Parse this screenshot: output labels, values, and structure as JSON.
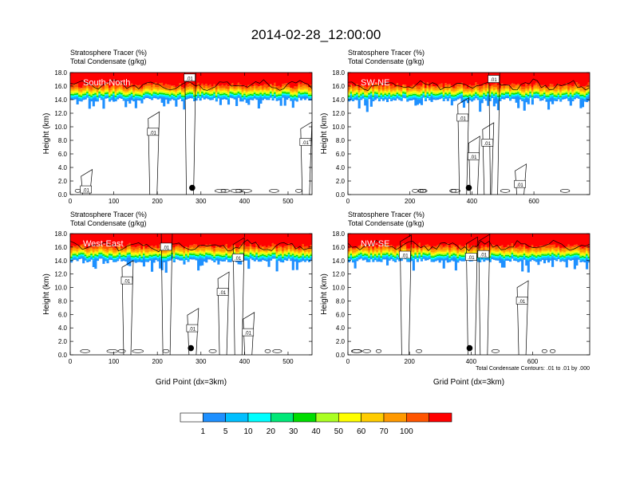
{
  "page_title": "2014-02-28_12:00:00",
  "chart_data": [
    {
      "type": "heatmap",
      "panel_label": "South-North",
      "subtitle_line1": "Stratosphere Tracer   (%)",
      "subtitle_line2": "Total Condensate   (g/kg)",
      "ylabel": "Height (km)",
      "xlabel": "",
      "xlim": [
        0,
        555
      ],
      "ylim": [
        0,
        18
      ],
      "xticks": [
        "0",
        "100",
        "200",
        "300",
        "400",
        "500"
      ],
      "yticks": [
        "0.0",
        "2.0",
        "4.0",
        "6.0",
        "8.0",
        "10.0",
        "12.0",
        "14.0",
        "16.0",
        "18.0"
      ],
      "tracer_base_km": 14.0,
      "contour_labels": [
        {
          "x": 274,
          "y": 17.2,
          "text": ".01"
        },
        {
          "x": 190,
          "y": 9.2,
          "text": ".01"
        },
        {
          "x": 540,
          "y": 7.7,
          "text": ".01"
        },
        {
          "x": 36,
          "y": 0.7,
          "text": ".01"
        }
      ],
      "marker": {
        "x": 280,
        "y": 1.0
      },
      "footnote": ""
    },
    {
      "type": "heatmap",
      "panel_label": "SW-NE",
      "subtitle_line1": "Stratosphere Tracer   (%)",
      "subtitle_line2": "Total Condensate   (g/kg)",
      "ylabel": "Height (km)",
      "xlabel": "",
      "xlim": [
        0,
        780
      ],
      "ylim": [
        0,
        18
      ],
      "xticks": [
        "0",
        "200",
        "400",
        "600"
      ],
      "yticks": [
        "0.0",
        "2.0",
        "4.0",
        "6.0",
        "8.0",
        "10.0",
        "12.0",
        "14.0",
        "16.0",
        "18.0"
      ],
      "tracer_base_km": 14.0,
      "contour_labels": [
        {
          "x": 470,
          "y": 17.0,
          "text": ".01"
        },
        {
          "x": 370,
          "y": 11.3,
          "text": ".01"
        },
        {
          "x": 450,
          "y": 7.6,
          "text": ".01"
        },
        {
          "x": 405,
          "y": 5.6,
          "text": ".01"
        },
        {
          "x": 555,
          "y": 1.5,
          "text": ".01"
        }
      ],
      "marker": {
        "x": 390,
        "y": 1.0
      },
      "footnote": ""
    },
    {
      "type": "heatmap",
      "panel_label": "West-East",
      "subtitle_line1": "Stratosphere Tracer   (%)",
      "subtitle_line2": "Total Condensate   (g/kg)",
      "ylabel": "Height (km)",
      "xlabel": "Grid Point (dx=3km)",
      "xlim": [
        0,
        555
      ],
      "ylim": [
        0,
        18
      ],
      "xticks": [
        "0",
        "100",
        "200",
        "300",
        "400",
        "500"
      ],
      "yticks": [
        "0.0",
        "2.0",
        "4.0",
        "6.0",
        "8.0",
        "10.0",
        "12.0",
        "14.0",
        "16.0",
        "18.0"
      ],
      "tracer_base_km": 14.0,
      "contour_labels": [
        {
          "x": 220,
          "y": 16.0,
          "text": ".01"
        },
        {
          "x": 385,
          "y": 14.4,
          "text": ".01"
        },
        {
          "x": 130,
          "y": 11.0,
          "text": ".01"
        },
        {
          "x": 350,
          "y": 9.3,
          "text": ".01"
        },
        {
          "x": 280,
          "y": 3.9,
          "text": ".01"
        },
        {
          "x": 408,
          "y": 3.3,
          "text": ".01"
        }
      ],
      "marker": {
        "x": 277,
        "y": 1.0
      },
      "footnote": ""
    },
    {
      "type": "heatmap",
      "panel_label": "NW-SE",
      "subtitle_line1": "Stratosphere Tracer   (%)",
      "subtitle_line2": "Total Condensate   (g/kg)",
      "ylabel": "Height (km)",
      "xlabel": "Grid Point (dx=3km)",
      "xlim": [
        0,
        785
      ],
      "ylim": [
        0,
        18
      ],
      "xticks": [
        "0",
        "200",
        "400",
        "600"
      ],
      "yticks": [
        "0.0",
        "2.0",
        "4.0",
        "6.0",
        "8.0",
        "10.0",
        "12.0",
        "14.0",
        "16.0",
        "18.0"
      ],
      "tracer_base_km": 14.0,
      "contour_labels": [
        {
          "x": 185,
          "y": 14.8,
          "text": ".01"
        },
        {
          "x": 400,
          "y": 14.5,
          "text": ".01"
        },
        {
          "x": 440,
          "y": 14.9,
          "text": ".01"
        },
        {
          "x": 565,
          "y": 8.0,
          "text": ".01"
        }
      ],
      "marker": {
        "x": 395,
        "y": 1.0
      },
      "footnote": "Total Condensate Contours: .01 to .01 by .000"
    }
  ],
  "colorbar": {
    "levels": [
      "1",
      "5",
      "10",
      "20",
      "30",
      "40",
      "50",
      "60",
      "70",
      "100"
    ],
    "colors": [
      "#ffffff",
      "#1e90ff",
      "#00bfff",
      "#00ffff",
      "#00e878",
      "#00dd00",
      "#aaff22",
      "#ffff00",
      "#ffcc00",
      "#ff9900",
      "#ff5500",
      "#ff0000"
    ]
  }
}
